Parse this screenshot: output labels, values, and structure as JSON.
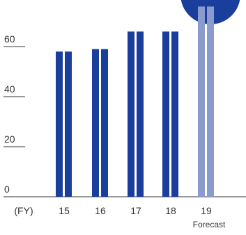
{
  "chart_data": {
    "type": "bar",
    "title": "",
    "xlabel": "(FY)",
    "ylabel": "",
    "ylim": [
      0,
      75
    ],
    "y_ticks": [
      {
        "value": 0,
        "label": "0"
      },
      {
        "value": 20,
        "label": "20"
      },
      {
        "value": 40,
        "label": "40"
      },
      {
        "value": 60,
        "label": "60"
      }
    ],
    "categories": [
      "15",
      "16",
      "17",
      "18",
      "19"
    ],
    "values": [
      58,
      59,
      66,
      66,
      76
    ],
    "category_notes": [
      "",
      "",
      "",
      "",
      "Forecast"
    ],
    "colors": [
      "#1a3e9c",
      "#1a3e9c",
      "#1a3e9c",
      "#1a3e9c",
      "#8c9bcd"
    ],
    "accent_color": "#1a3e9c",
    "forecast_color": "#8c9bcd",
    "grid": false,
    "legend": "none"
  }
}
